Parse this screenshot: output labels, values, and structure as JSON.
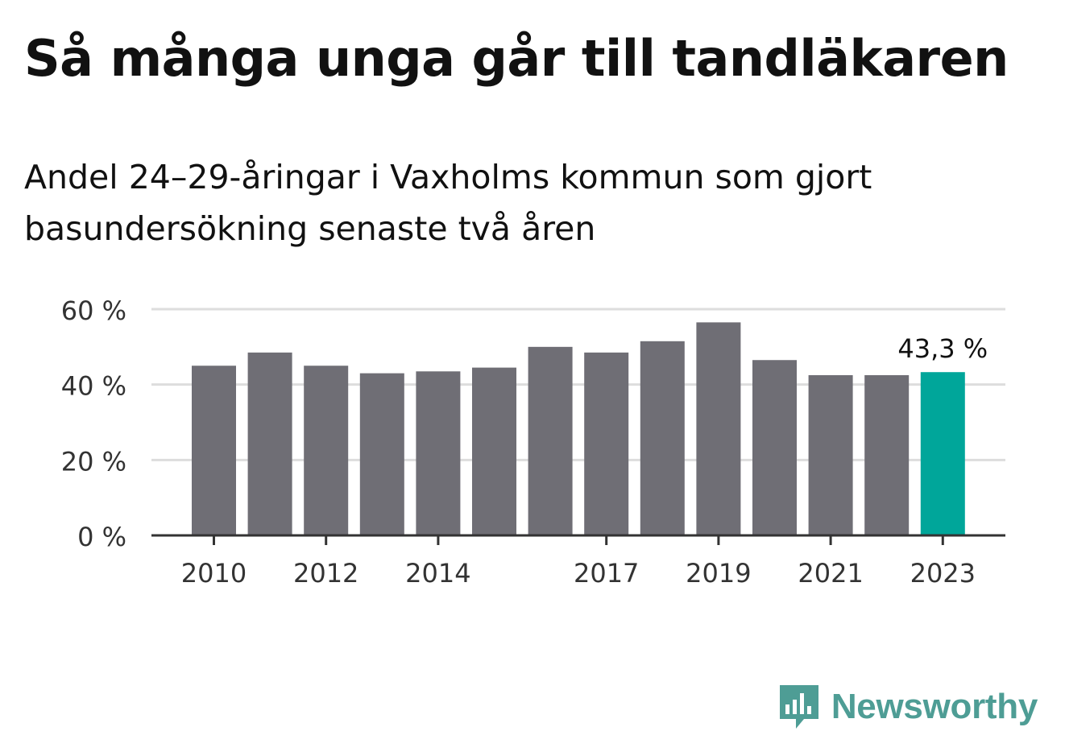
{
  "title": "Så många unga går till tandläkaren",
  "subtitle": "Andel 24–29-åringar i Vaxholms kommun som gjort basundersökning senaste två åren",
  "brand": {
    "name": "Newsworthy",
    "icon": "newsworthy-logo-icon",
    "color": "#4e9d95"
  },
  "colors": {
    "bar": "#6f6e75",
    "highlight": "#00a69a",
    "grid": "#dddddd",
    "axis": "#333333"
  },
  "chart_data": {
    "type": "bar",
    "x": [
      2010,
      2011,
      2012,
      2013,
      2014,
      2015,
      2016,
      2017,
      2018,
      2019,
      2020,
      2021,
      2022,
      2023
    ],
    "values": [
      45,
      48.5,
      45,
      43,
      43.5,
      44.5,
      50,
      48.5,
      51.5,
      56.5,
      46.5,
      42.5,
      42.5,
      43.3
    ],
    "highlight_index": 13,
    "data_label": "43,3 %",
    "x_ticks": [
      "2010",
      "2012",
      "2014",
      "2017",
      "2019",
      "2021",
      "2023"
    ],
    "y_ticks": [
      "0 %",
      "20 %",
      "40 %",
      "60 %"
    ],
    "y_tick_values": [
      0,
      20,
      40,
      60
    ],
    "ylim": [
      0,
      60
    ],
    "grid": true,
    "legend": "none"
  }
}
